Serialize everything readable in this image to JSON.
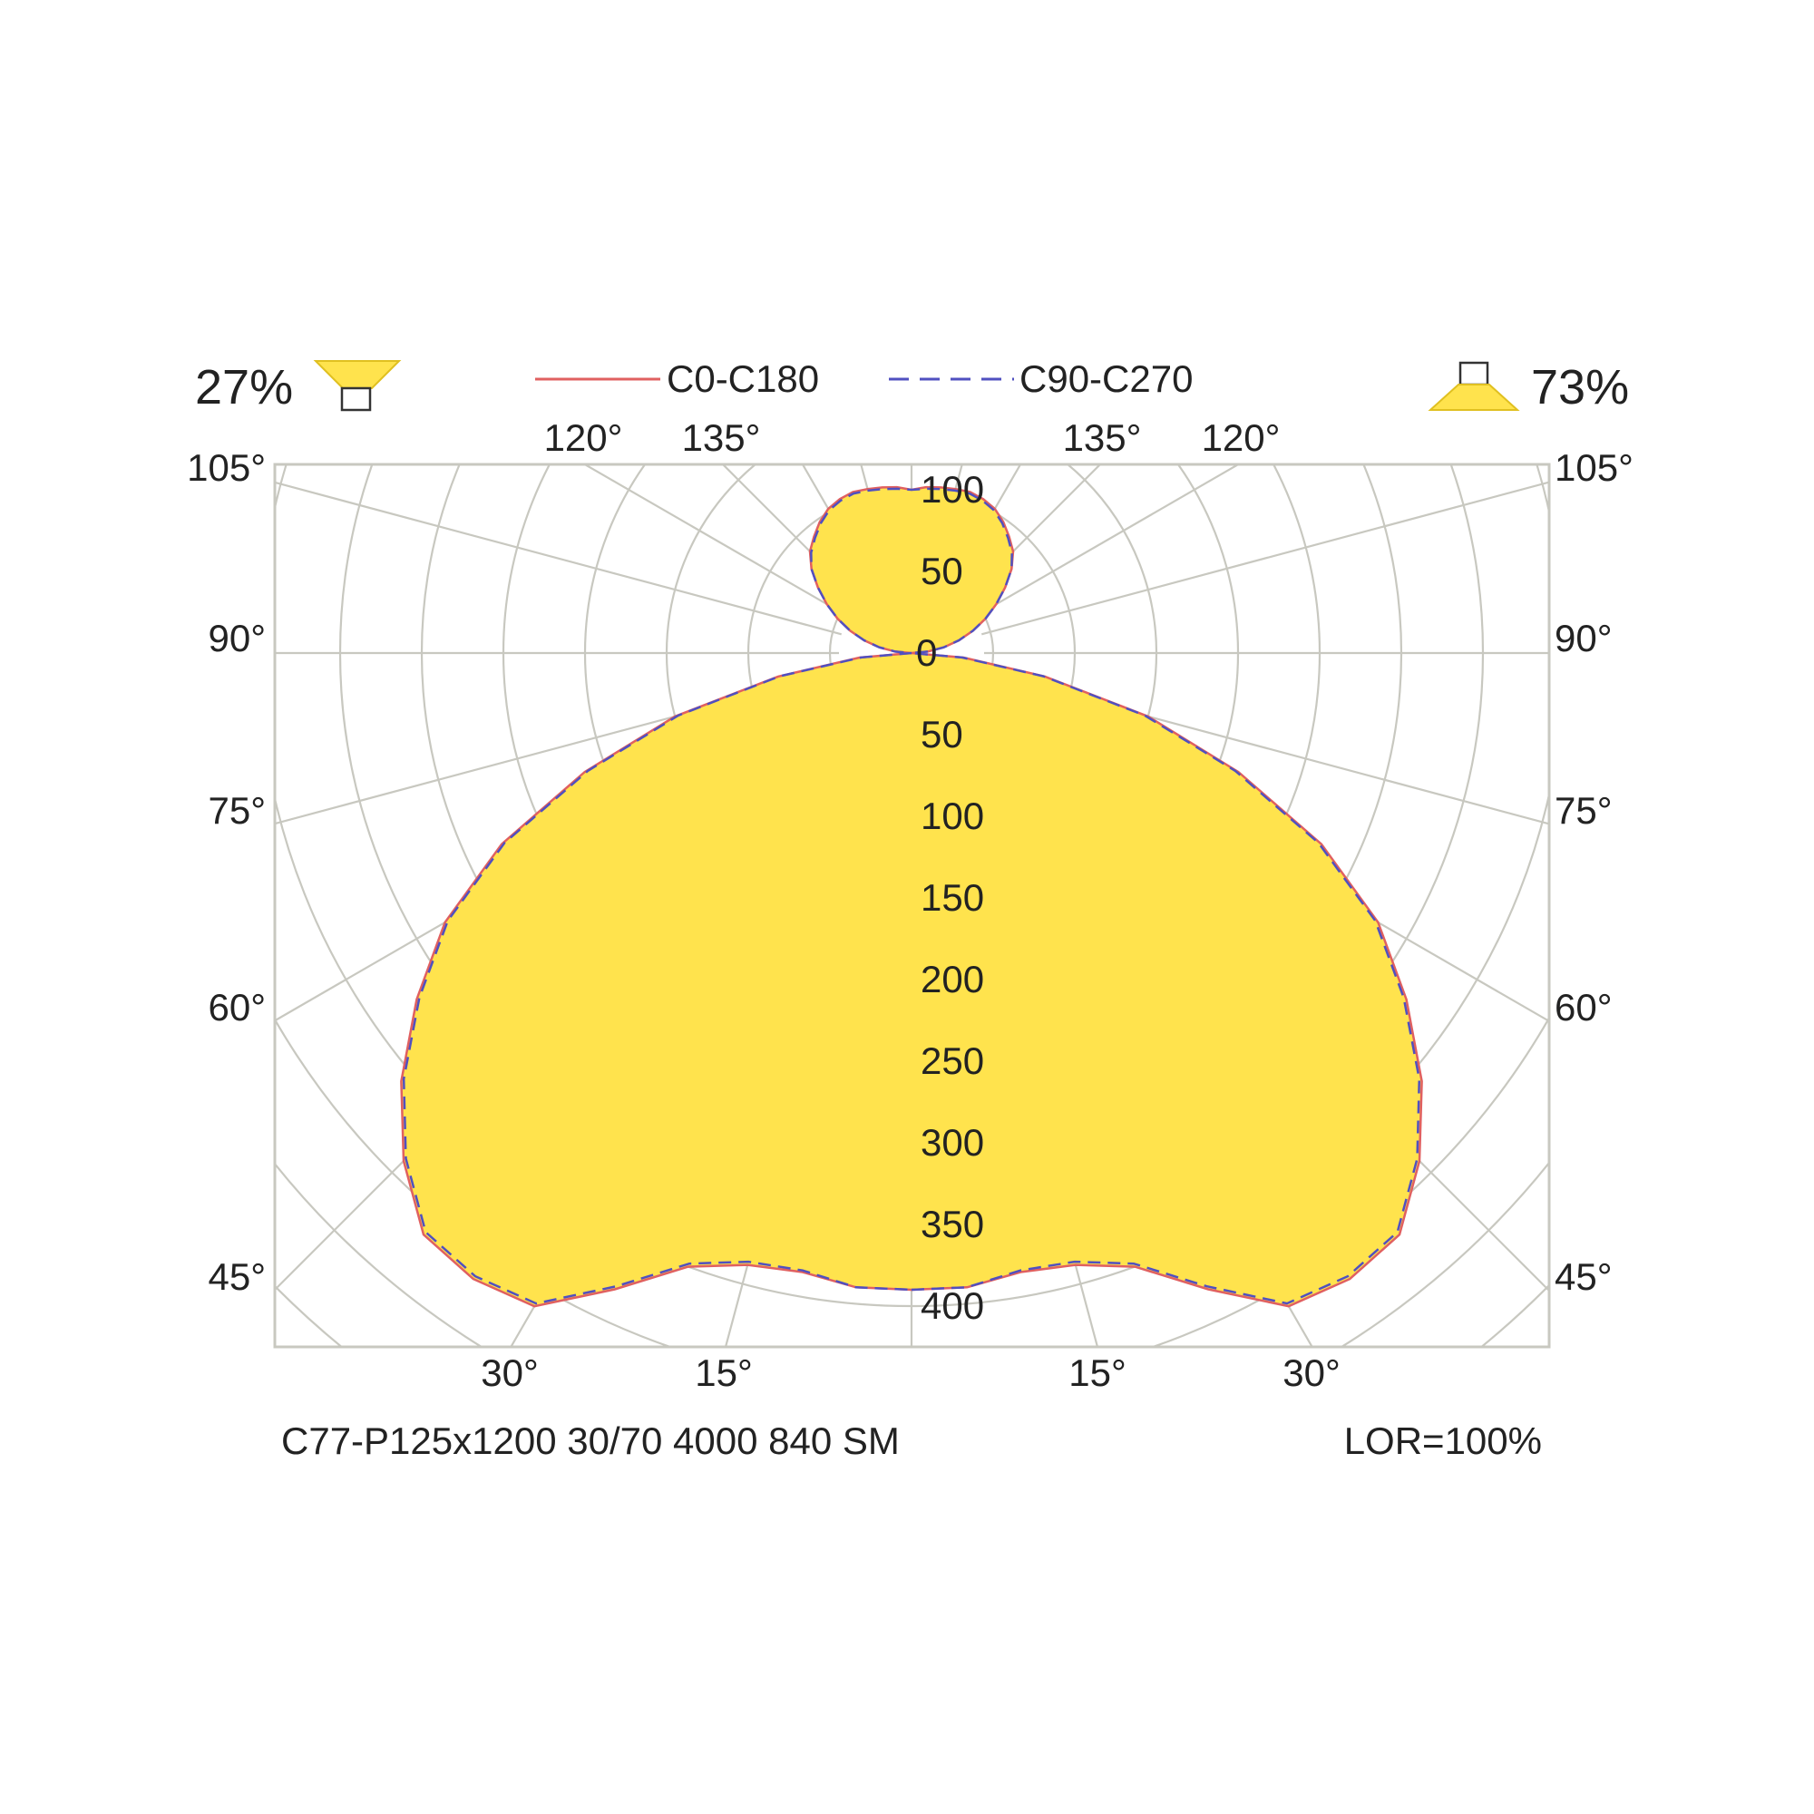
{
  "chart_data": {
    "type": "polar",
    "subtype": "luminous-intensity-distribution",
    "downward_percent": "73%",
    "upward_percent": "27%",
    "product_label": "C77-P125x1200 30/70 4000 840 SM",
    "lor_label": "LOR=100%",
    "grid": true,
    "colors": {
      "fill": "#FFE34D",
      "grid": "#C8C8C0",
      "c0": "#E06060",
      "c90": "#5050C0",
      "text": "#222222"
    },
    "icons": {
      "up": "uplight-icon",
      "down": "downlight-icon"
    },
    "radial_labels": {
      "up": [
        "0",
        "50",
        "100"
      ],
      "down": [
        "50",
        "100",
        "150",
        "200",
        "250",
        "300",
        "350",
        "400"
      ]
    },
    "angle_labels": {
      "side": [
        "105°",
        "90°",
        "75°",
        "60°",
        "45°"
      ],
      "top": [
        "120°",
        "135°",
        "135°",
        "120°"
      ],
      "bottom": [
        "30°",
        "15°",
        "15°",
        "30°"
      ]
    },
    "series": [
      {
        "name": "C0-C180",
        "gamma": [
          0,
          5,
          10,
          15,
          20,
          25,
          30,
          35,
          40,
          45,
          50,
          55,
          60,
          65,
          70,
          75,
          80,
          85,
          90,
          95,
          100,
          105,
          110,
          115,
          120,
          125,
          130,
          135,
          140,
          145,
          150,
          155,
          160,
          165,
          170,
          175,
          180
        ],
        "intensity": [
          390,
          390,
          385,
          388,
          400,
          430,
          462,
          468,
          465,
          440,
          408,
          370,
          330,
          277,
          213,
          150,
          83,
          32,
          0,
          10,
          20,
          30,
          40,
          50,
          60,
          70,
          80,
          88,
          93,
          98,
          102,
          104,
          105,
          104,
          103,
          102,
          100
        ]
      },
      {
        "name": "C90-C270",
        "gamma": [
          0,
          5,
          10,
          15,
          20,
          25,
          30,
          35,
          40,
          45,
          50,
          55,
          60,
          65,
          70,
          75,
          80,
          85,
          90,
          95,
          100,
          105,
          110,
          115,
          120,
          125,
          130,
          135,
          140,
          145,
          150,
          155,
          160,
          165,
          170,
          175,
          180
        ],
        "intensity": [
          390,
          390,
          384,
          386,
          398,
          428,
          460,
          466,
          463,
          438,
          406,
          368,
          328,
          275,
          211,
          148,
          82,
          31,
          0,
          10,
          20,
          30,
          40,
          50,
          60,
          70,
          80,
          87,
          92,
          97,
          101,
          103,
          104,
          103,
          102,
          101,
          100
        ]
      }
    ]
  }
}
